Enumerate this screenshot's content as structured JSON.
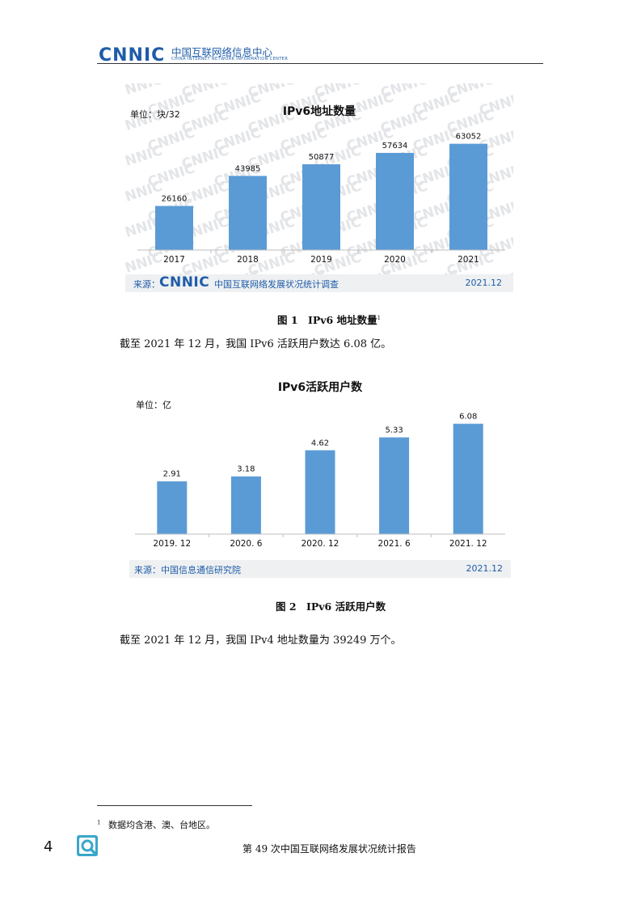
{
  "header": {
    "logo_text": "CNNIC",
    "org_name_cn": "中国互联网络信息中心",
    "org_name_en": "CHINA INTERNET NETWORK INFORMATION CENTER"
  },
  "watermark_text": "CNNIC",
  "figure1": {
    "unit_label": "单位：块/32",
    "source_label": "来源：",
    "source_logo": "CNNIC",
    "source_text": "中国互联网络发展状况统计调查",
    "date": "2021.12",
    "caption": "图 1　IPv6 地址数量",
    "caption_sup": "1"
  },
  "figure2": {
    "unit_label": "单位：亿",
    "source_text": "来源：中国信息通信研究院",
    "date": "2021.12",
    "caption": "图 2　IPv6 活跃用户数"
  },
  "chart_data": [
    {
      "type": "bar",
      "title": "IPv6地址数量",
      "categories": [
        "2017",
        "2018",
        "2019",
        "2020",
        "2021"
      ],
      "values": [
        26160,
        43985,
        50877,
        57634,
        63052
      ],
      "ylim": [
        0,
        72000
      ],
      "grid": false,
      "color": "#5b9bd5"
    },
    {
      "type": "bar",
      "title": "IPv6活跃用户数",
      "categories": [
        "2019. 12",
        "2020. 6",
        "2020. 12",
        "2021. 6",
        "2021. 12"
      ],
      "values": [
        2.91,
        3.18,
        4.62,
        5.33,
        6.08
      ],
      "ylim": [
        0,
        7
      ],
      "grid": false,
      "color": "#5b9bd5"
    }
  ],
  "text": {
    "para1": "截至 2021 年 12 月，我国 IPv6 活跃用户数达 6.08 亿。",
    "para2": "截至 2021 年 12 月，我国 IPv4 地址数量为 39249 万个。",
    "footnote_mark": "1",
    "footnote": "数据均含港、澳、台地区。"
  },
  "footer": {
    "page_number": "4",
    "report_title": "第 49 次中国互联网络发展状况统计报告"
  }
}
